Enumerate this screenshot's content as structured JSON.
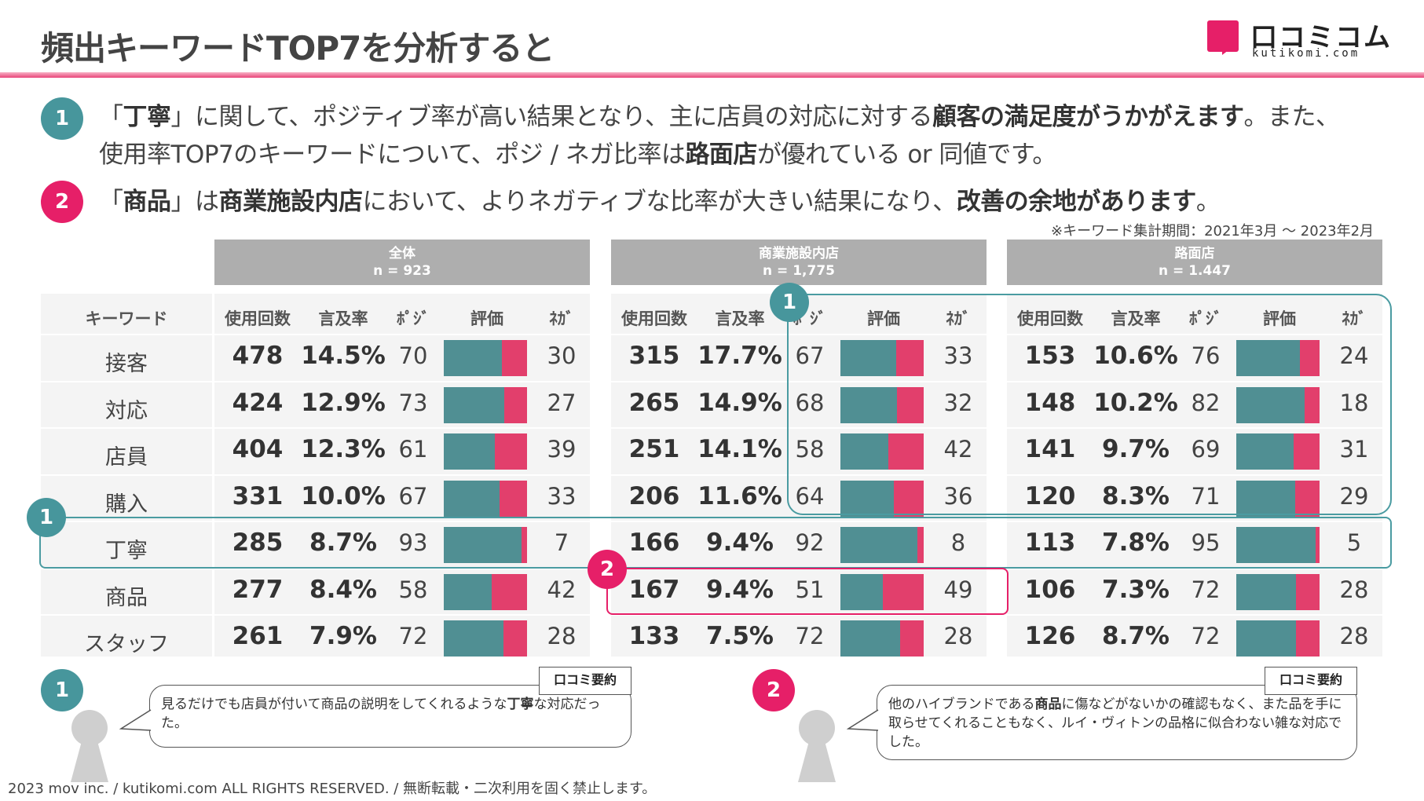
{
  "title": "頻出キーワードTOP7を分析すると",
  "logo": {
    "name": "口コミコム",
    "sub": "kutikomi.com"
  },
  "colors": {
    "accent_pink": "#e61f68",
    "accent_teal": "#47969c",
    "bar_positive": "#508f93",
    "bar_negative": "#e23f6c"
  },
  "bullets": [
    {
      "num": "1",
      "color": "teal",
      "line1": [
        {
          "t": "「",
          "b": false
        },
        {
          "t": "丁寧",
          "b": true
        },
        {
          "t": "」に関して、ポジティブ率が高い結果となり、主に店員の対応に対する",
          "b": false
        },
        {
          "t": "顧客の満足度がうかがえます",
          "b": true
        },
        {
          "t": "。また、",
          "b": false
        }
      ],
      "line2": [
        {
          "t": "使用率TOP7のキーワードについて、ポジ / ネガ比率は",
          "b": false
        },
        {
          "t": "路面店",
          "b": true
        },
        {
          "t": "が優れている or 同値です。",
          "b": false
        }
      ]
    },
    {
      "num": "2",
      "color": "pink",
      "line1": [
        {
          "t": "「",
          "b": false
        },
        {
          "t": "商品",
          "b": true
        },
        {
          "t": "」は",
          "b": false
        },
        {
          "t": "商業施設内店",
          "b": true
        },
        {
          "t": "において、よりネガティブな比率が大きい結果になり、",
          "b": false
        },
        {
          "t": "改善の余地があります",
          "b": true
        },
        {
          "t": "。",
          "b": false
        }
      ]
    }
  ],
  "period_note": "※キーワード集計期間：2021年3月 〜 2023年2月",
  "table": {
    "keyword_header": "キーワード",
    "col_headers": {
      "count": "使用回数",
      "rate": "言及率",
      "pos": "ﾎﾟｼﾞ",
      "eval": "評価",
      "neg": "ﾈｶﾞ"
    },
    "keywords": [
      "接客",
      "対応",
      "店員",
      "購入",
      "丁寧",
      "商品",
      "スタッフ"
    ],
    "groups": [
      {
        "name": "全体",
        "n": "n = 923",
        "rows": [
          {
            "count": "478",
            "rate": "14.5%",
            "pos": 70,
            "neg": 30
          },
          {
            "count": "424",
            "rate": "12.9%",
            "pos": 73,
            "neg": 27
          },
          {
            "count": "404",
            "rate": "12.3%",
            "pos": 61,
            "neg": 39
          },
          {
            "count": "331",
            "rate": "10.0%",
            "pos": 67,
            "neg": 33
          },
          {
            "count": "285",
            "rate": "8.7%",
            "pos": 93,
            "neg": 7
          },
          {
            "count": "277",
            "rate": "8.4%",
            "pos": 58,
            "neg": 42
          },
          {
            "count": "261",
            "rate": "7.9%",
            "pos": 72,
            "neg": 28
          }
        ]
      },
      {
        "name": "商業施設内店",
        "n": "n = 1,775",
        "rows": [
          {
            "count": "315",
            "rate": "17.7%",
            "pos": 67,
            "neg": 33
          },
          {
            "count": "265",
            "rate": "14.9%",
            "pos": 68,
            "neg": 32
          },
          {
            "count": "251",
            "rate": "14.1%",
            "pos": 58,
            "neg": 42
          },
          {
            "count": "206",
            "rate": "11.6%",
            "pos": 64,
            "neg": 36
          },
          {
            "count": "166",
            "rate": "9.4%",
            "pos": 92,
            "neg": 8
          },
          {
            "count": "167",
            "rate": "9.4%",
            "pos": 51,
            "neg": 49
          },
          {
            "count": "133",
            "rate": "7.5%",
            "pos": 72,
            "neg": 28
          }
        ]
      },
      {
        "name": "路面店",
        "n": "n = 1.447",
        "rows": [
          {
            "count": "153",
            "rate": "10.6%",
            "pos": 76,
            "neg": 24
          },
          {
            "count": "148",
            "rate": "10.2%",
            "pos": 82,
            "neg": 18
          },
          {
            "count": "141",
            "rate": "9.7%",
            "pos": 69,
            "neg": 31
          },
          {
            "count": "120",
            "rate": "8.3%",
            "pos": 71,
            "neg": 29
          },
          {
            "count": "113",
            "rate": "7.8%",
            "pos": 95,
            "neg": 5
          },
          {
            "count": "106",
            "rate": "7.3%",
            "pos": 72,
            "neg": 28
          },
          {
            "count": "126",
            "rate": "8.7%",
            "pos": 72,
            "neg": 28
          }
        ]
      }
    ]
  },
  "markers": {
    "one": "1",
    "two": "2"
  },
  "reviews": [
    {
      "num": "1",
      "tag": "口コミ要約",
      "text": [
        {
          "t": "見るだけでも店員が付いて商品の説明をしてくれるような",
          "b": false
        },
        {
          "t": "丁寧",
          "b": true
        },
        {
          "t": "な対応だった。",
          "b": false
        }
      ]
    },
    {
      "num": "2",
      "tag": "口コミ要約",
      "text": [
        {
          "t": "他のハイブランドである",
          "b": false
        },
        {
          "t": "商品",
          "b": true
        },
        {
          "t": "に傷などがないかの確認もなく、また品を手に取らせてくれることもなく、ルイ・ヴィトンの品格に似合わない雑な対応でした。",
          "b": false
        }
      ]
    }
  ],
  "footer": "2023 mov inc. / kutikomi.com ALL RIGHTS RESERVED. / 無断転載・二次利用を固く禁止します。"
}
